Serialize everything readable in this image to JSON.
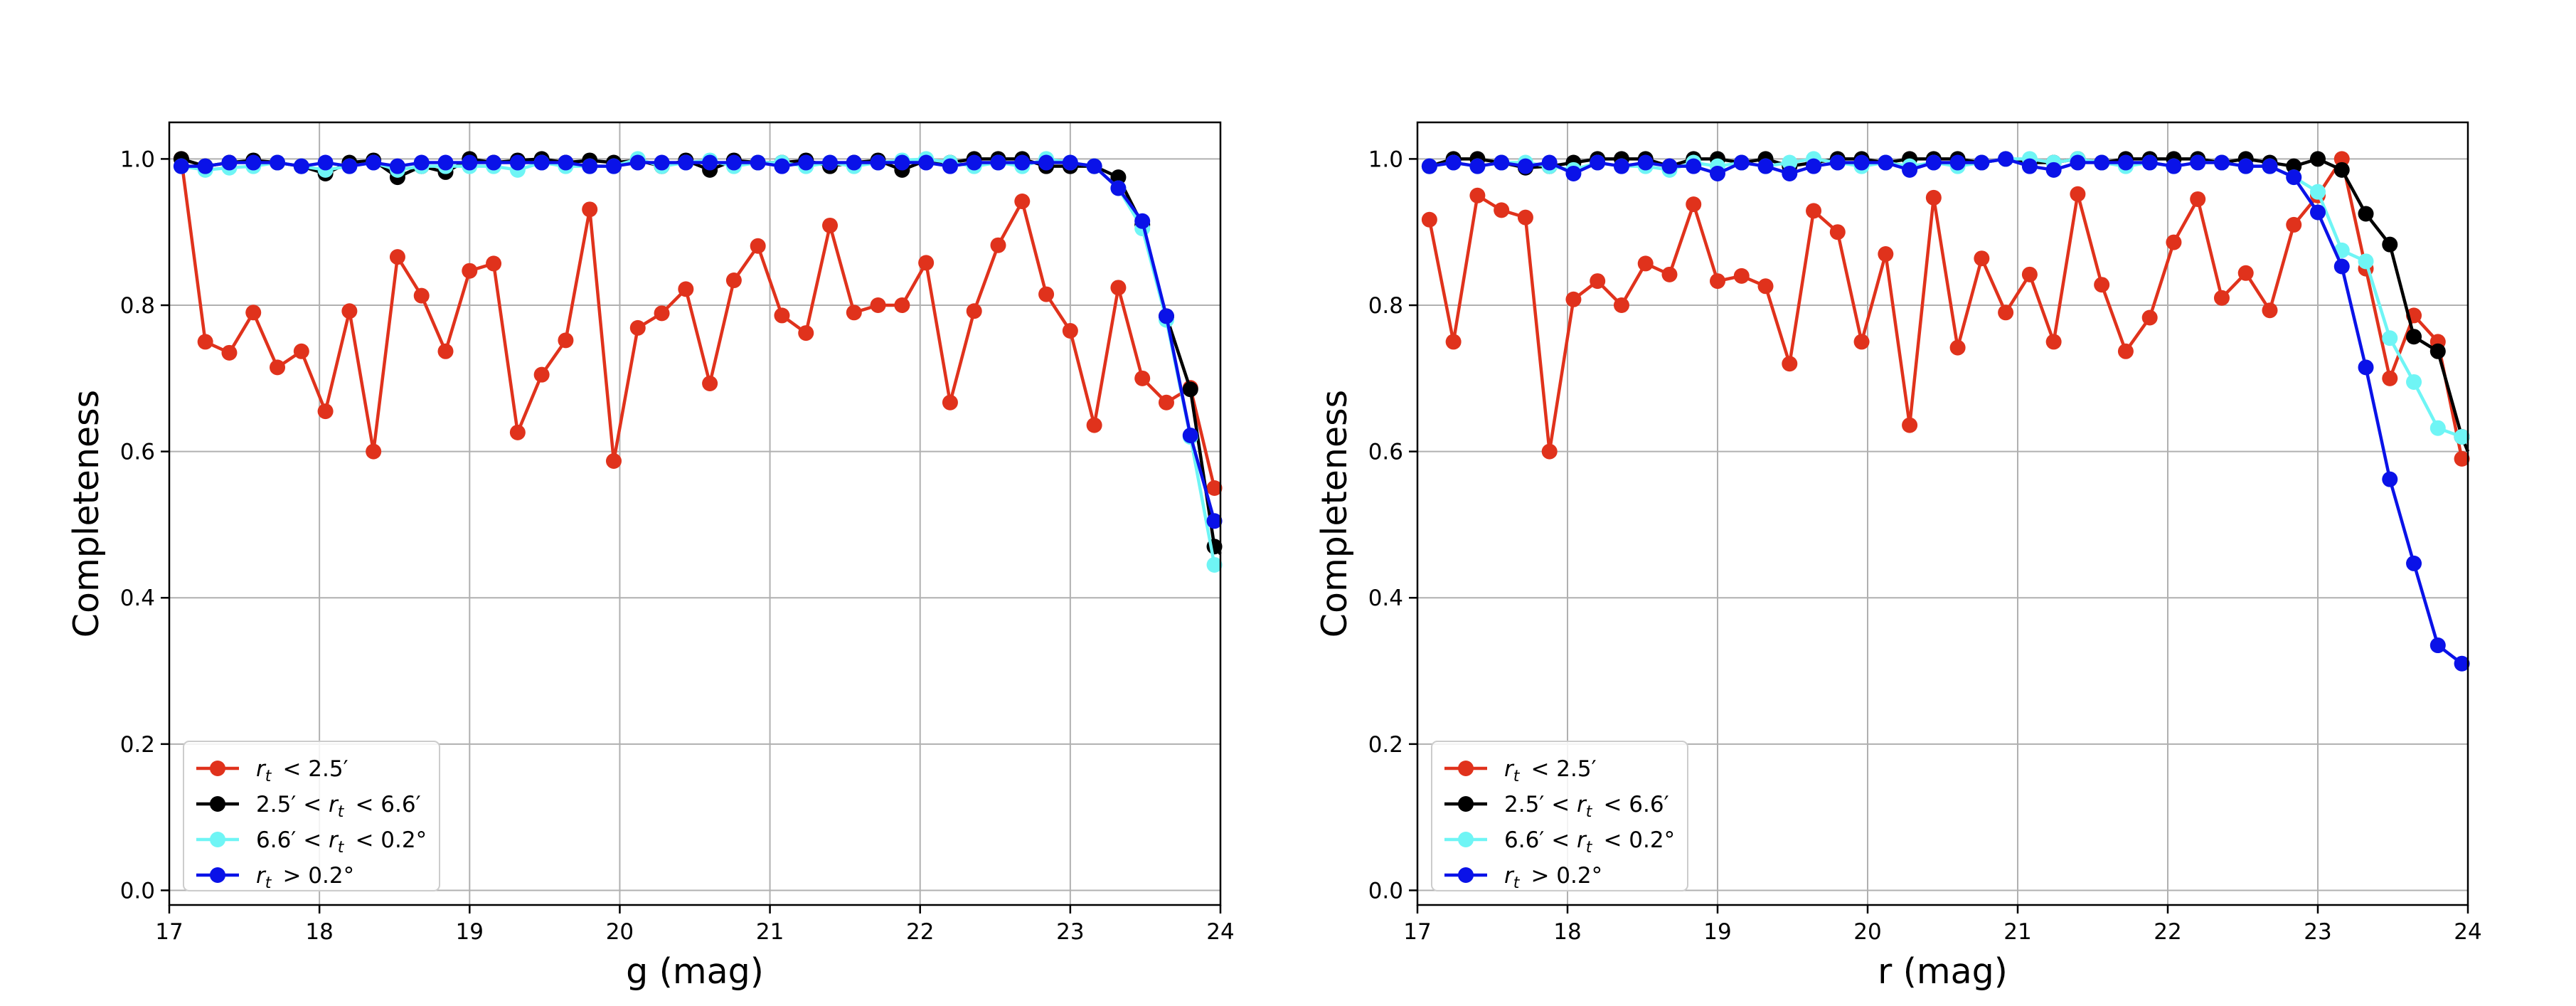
{
  "chart_data": [
    {
      "type": "line",
      "xlabel": "g (mag)",
      "ylabel": "Completeness",
      "xlim": [
        17,
        24
      ],
      "ylim": [
        -0.02,
        1.05
      ],
      "xticks": [
        "17",
        "18",
        "19",
        "20",
        "21",
        "22",
        "23",
        "24"
      ],
      "yticks": [
        "0.0",
        "0.2",
        "0.4",
        "0.6",
        "0.8",
        "1.0"
      ],
      "grid": true,
      "legend_position": "lower-left",
      "series": [
        {
          "name": "r_t < 2.5′",
          "color": "#e0321c",
          "x": [
            17.08,
            17.24,
            17.4,
            17.56,
            17.72,
            17.88,
            18.04,
            18.2,
            18.36,
            18.52,
            18.68,
            18.84,
            19.0,
            19.16,
            19.32,
            19.48,
            19.64,
            19.8,
            19.96,
            20.12,
            20.28,
            20.44,
            20.6,
            20.76,
            20.92,
            21.08,
            21.24,
            21.4,
            21.56,
            21.72,
            21.88,
            22.04,
            22.2,
            22.36,
            22.52,
            22.68,
            22.84,
            23.0,
            23.16,
            23.32,
            23.48,
            23.64,
            23.8,
            23.96,
            24.0
          ],
          "y": [
            1.0,
            0.75,
            0.735,
            0.79,
            0.715,
            0.737,
            0.655,
            0.792,
            0.6,
            0.866,
            0.813,
            0.737,
            0.847,
            0.857,
            0.626,
            0.705,
            0.752,
            0.931,
            0.587,
            0.769,
            0.789,
            0.822,
            0.693,
            0.834,
            0.881,
            0.786,
            0.762,
            0.909,
            0.79,
            0.8,
            0.8,
            0.858,
            0.667,
            0.792,
            0.882,
            0.942,
            0.815,
            0.765,
            0.636,
            0.824,
            0.7,
            0.667,
            0.687,
            0.55,
            0.55
          ]
        },
        {
          "name": "2.5′ < r_t < 6.6′",
          "color": "#000000",
          "x": [
            17.08,
            17.24,
            17.4,
            17.56,
            17.72,
            17.88,
            18.04,
            18.2,
            18.36,
            18.52,
            18.68,
            18.84,
            19.0,
            19.16,
            19.32,
            19.48,
            19.64,
            19.8,
            19.96,
            20.12,
            20.28,
            20.44,
            20.6,
            20.76,
            20.92,
            21.08,
            21.24,
            21.4,
            21.56,
            21.72,
            21.88,
            22.04,
            22.2,
            22.36,
            22.52,
            22.68,
            22.84,
            23.0,
            23.16,
            23.32,
            23.48,
            23.64,
            23.8,
            23.96,
            24.0
          ],
          "y": [
            1.0,
            0.99,
            0.995,
            0.998,
            0.995,
            0.99,
            0.98,
            0.995,
            0.998,
            0.975,
            0.99,
            0.982,
            1.0,
            0.995,
            0.998,
            1.0,
            0.995,
            0.998,
            0.995,
            0.998,
            0.99,
            0.998,
            0.985,
            0.998,
            0.995,
            0.995,
            0.998,
            0.99,
            0.995,
            0.998,
            0.985,
            0.998,
            0.995,
            1.0,
            1.0,
            1.0,
            0.99,
            0.99,
            0.99,
            0.975,
            0.91,
            0.785,
            0.685,
            0.47,
            0.46
          ]
        },
        {
          "name": "6.6′ < r_t < 0.2°",
          "color": "#6ff5f5",
          "x": [
            17.08,
            17.24,
            17.4,
            17.56,
            17.72,
            17.88,
            18.04,
            18.2,
            18.36,
            18.52,
            18.68,
            18.84,
            19.0,
            19.16,
            19.32,
            19.48,
            19.64,
            19.8,
            19.96,
            20.12,
            20.28,
            20.44,
            20.6,
            20.76,
            20.92,
            21.08,
            21.24,
            21.4,
            21.56,
            21.72,
            21.88,
            22.04,
            22.2,
            22.36,
            22.52,
            22.68,
            22.84,
            23.0,
            23.16,
            23.32,
            23.48,
            23.64,
            23.8,
            23.96,
            24.0
          ],
          "y": [
            0.99,
            0.985,
            0.988,
            0.99,
            0.995,
            0.99,
            0.985,
            0.99,
            0.995,
            0.985,
            0.99,
            0.99,
            0.99,
            0.99,
            0.985,
            0.995,
            0.99,
            0.99,
            0.99,
            1.0,
            0.99,
            0.995,
            0.998,
            0.99,
            0.995,
            0.995,
            0.99,
            0.995,
            0.99,
            0.995,
            0.998,
            1.0,
            0.995,
            0.99,
            0.995,
            0.99,
            1.0,
            0.995,
            0.99,
            0.96,
            0.905,
            0.78,
            0.62,
            0.445,
            0.44
          ]
        },
        {
          "name": "r_t > 0.2°",
          "color": "#0a12e8",
          "x": [
            17.08,
            17.24,
            17.4,
            17.56,
            17.72,
            17.88,
            18.04,
            18.2,
            18.36,
            18.52,
            18.68,
            18.84,
            19.0,
            19.16,
            19.32,
            19.48,
            19.64,
            19.8,
            19.96,
            20.12,
            20.28,
            20.44,
            20.6,
            20.76,
            20.92,
            21.08,
            21.24,
            21.4,
            21.56,
            21.72,
            21.88,
            22.04,
            22.2,
            22.36,
            22.52,
            22.68,
            22.84,
            23.0,
            23.16,
            23.32,
            23.48,
            23.64,
            23.8,
            23.96,
            24.0
          ],
          "y": [
            0.99,
            0.99,
            0.995,
            0.995,
            0.995,
            0.99,
            0.995,
            0.99,
            0.995,
            0.99,
            0.995,
            0.995,
            0.995,
            0.995,
            0.995,
            0.995,
            0.995,
            0.99,
            0.99,
            0.995,
            0.995,
            0.995,
            0.995,
            0.995,
            0.995,
            0.99,
            0.995,
            0.995,
            0.995,
            0.995,
            0.995,
            0.995,
            0.99,
            0.995,
            0.995,
            0.995,
            0.995,
            0.995,
            0.99,
            0.96,
            0.915,
            0.785,
            0.622,
            0.505,
            0.5
          ]
        }
      ]
    },
    {
      "type": "line",
      "xlabel": "r (mag)",
      "ylabel": "Completeness",
      "xlim": [
        17,
        24
      ],
      "ylim": [
        -0.02,
        1.05
      ],
      "xticks": [
        "17",
        "18",
        "19",
        "20",
        "21",
        "22",
        "23",
        "24"
      ],
      "yticks": [
        "0.0",
        "0.2",
        "0.4",
        "0.6",
        "0.8",
        "1.0"
      ],
      "grid": true,
      "legend_position": "lower-left",
      "series": [
        {
          "name": "r_t < 2.5′",
          "color": "#e0321c",
          "x": [
            17.08,
            17.24,
            17.4,
            17.56,
            17.72,
            17.88,
            18.04,
            18.2,
            18.36,
            18.52,
            18.68,
            18.84,
            19.0,
            19.16,
            19.32,
            19.48,
            19.64,
            19.8,
            19.96,
            20.12,
            20.28,
            20.44,
            20.6,
            20.76,
            20.92,
            21.08,
            21.24,
            21.4,
            21.56,
            21.72,
            21.88,
            22.04,
            22.2,
            22.36,
            22.52,
            22.68,
            22.84,
            23.0,
            23.16,
            23.32,
            23.48,
            23.64,
            23.8,
            23.96,
            24.0
          ],
          "y": [
            0.917,
            0.75,
            0.95,
            0.93,
            0.92,
            0.6,
            0.808,
            0.833,
            0.8,
            0.857,
            0.842,
            0.938,
            0.833,
            0.84,
            0.826,
            0.72,
            0.929,
            0.9,
            0.75,
            0.87,
            0.636,
            0.947,
            0.742,
            0.864,
            0.79,
            0.842,
            0.75,
            0.952,
            0.828,
            0.737,
            0.783,
            0.886,
            0.945,
            0.81,
            0.844,
            0.793,
            0.91,
            0.95,
            1.0,
            0.85,
            0.7,
            0.786,
            0.75,
            0.59,
            0.59
          ]
        },
        {
          "name": "2.5′ < r_t < 6.6′",
          "color": "#000000",
          "x": [
            17.08,
            17.24,
            17.4,
            17.56,
            17.72,
            17.88,
            18.04,
            18.2,
            18.36,
            18.52,
            18.68,
            18.84,
            19.0,
            19.16,
            19.32,
            19.48,
            19.64,
            19.8,
            19.96,
            20.12,
            20.28,
            20.44,
            20.6,
            20.76,
            20.92,
            21.08,
            21.24,
            21.4,
            21.56,
            21.72,
            21.88,
            22.04,
            22.2,
            22.36,
            22.52,
            22.68,
            22.84,
            23.0,
            23.16,
            23.32,
            23.48,
            23.64,
            23.8,
            23.96,
            24.0
          ],
          "y": [
            0.99,
            1.0,
            1.0,
            0.995,
            0.988,
            0.99,
            0.995,
            1.0,
            1.0,
            1.0,
            0.99,
            1.0,
            1.0,
            0.995,
            1.0,
            0.99,
            0.995,
            1.0,
            1.0,
            0.995,
            1.0,
            1.0,
            1.0,
            0.995,
            1.0,
            0.995,
            0.995,
            1.0,
            0.995,
            1.0,
            1.0,
            1.0,
            1.0,
            0.995,
            1.0,
            0.995,
            0.99,
            1.0,
            0.985,
            0.925,
            0.883,
            0.757,
            0.737,
            0.62,
            0.6
          ]
        },
        {
          "name": "6.6′ < r_t < 0.2°",
          "color": "#6ff5f5",
          "x": [
            17.08,
            17.24,
            17.4,
            17.56,
            17.72,
            17.88,
            18.04,
            18.2,
            18.36,
            18.52,
            18.68,
            18.84,
            19.0,
            19.16,
            19.32,
            19.48,
            19.64,
            19.8,
            19.96,
            20.12,
            20.28,
            20.44,
            20.6,
            20.76,
            20.92,
            21.08,
            21.24,
            21.4,
            21.56,
            21.72,
            21.88,
            22.04,
            22.2,
            22.36,
            22.52,
            22.68,
            22.84,
            23.0,
            23.16,
            23.32,
            23.48,
            23.64,
            23.8,
            23.96,
            24.0
          ],
          "y": [
            0.99,
            0.995,
            0.99,
            0.995,
            0.995,
            0.99,
            0.985,
            0.995,
            0.99,
            0.99,
            0.985,
            0.995,
            0.99,
            0.995,
            0.99,
            0.995,
            1.0,
            0.995,
            0.99,
            0.995,
            0.99,
            0.995,
            0.99,
            0.995,
            1.0,
            1.0,
            0.995,
            1.0,
            0.995,
            0.99,
            0.995,
            0.99,
            0.995,
            0.995,
            0.99,
            0.99,
            0.975,
            0.955,
            0.875,
            0.86,
            0.755,
            0.695,
            0.632,
            0.62,
            0.62
          ]
        },
        {
          "name": "r_t > 0.2°",
          "color": "#0a12e8",
          "x": [
            17.08,
            17.24,
            17.4,
            17.56,
            17.72,
            17.88,
            18.04,
            18.2,
            18.36,
            18.52,
            18.68,
            18.84,
            19.0,
            19.16,
            19.32,
            19.48,
            19.64,
            19.8,
            19.96,
            20.12,
            20.28,
            20.44,
            20.6,
            20.76,
            20.92,
            21.08,
            21.24,
            21.4,
            21.56,
            21.72,
            21.88,
            22.04,
            22.2,
            22.36,
            22.52,
            22.68,
            22.84,
            23.0,
            23.16,
            23.32,
            23.48,
            23.64,
            23.8,
            23.96,
            24.0
          ],
          "y": [
            0.99,
            0.995,
            0.99,
            0.995,
            0.99,
            0.995,
            0.98,
            0.995,
            0.99,
            0.995,
            0.99,
            0.99,
            0.98,
            0.995,
            0.99,
            0.98,
            0.99,
            0.995,
            0.995,
            0.995,
            0.985,
            0.995,
            0.995,
            0.995,
            1.0,
            0.99,
            0.985,
            0.995,
            0.995,
            0.995,
            0.995,
            0.99,
            0.995,
            0.995,
            0.99,
            0.99,
            0.975,
            0.927,
            0.853,
            0.715,
            0.562,
            0.447,
            0.335,
            0.31,
            0.31
          ]
        }
      ]
    }
  ]
}
